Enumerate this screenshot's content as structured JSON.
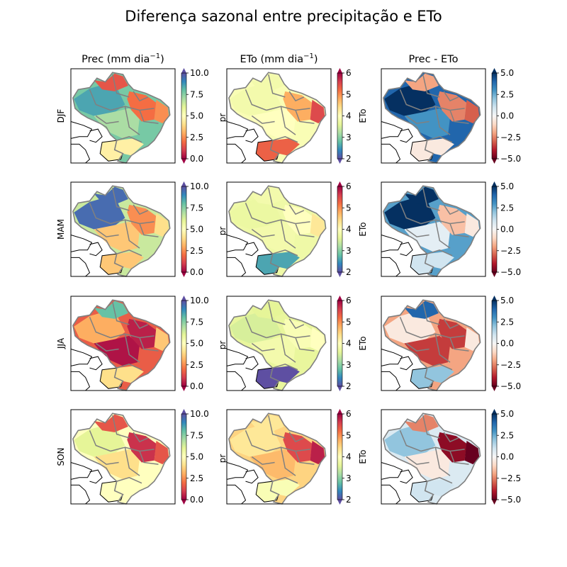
{
  "title": "Diferença sazonal entre precipitação e ETo",
  "columns": [
    {
      "id": "prec",
      "label": "Prec (mm dia",
      "label_sup": "−1",
      "label_close": ")",
      "cbar_ticks": [
        "10.0",
        "7.5",
        "5.0",
        "2.5",
        "0.0"
      ],
      "cbar_range": [
        0,
        10
      ],
      "cbar_side_label": "",
      "row_side_label": "",
      "cmap": "spectral",
      "reversed": false
    },
    {
      "id": "eto",
      "label": "ETo (mm dia",
      "label_sup": "−1",
      "label_close": ")",
      "cbar_ticks": [
        "6",
        "5",
        "4",
        "3",
        "2"
      ],
      "cbar_range": [
        2,
        6
      ],
      "cbar_side_label": "ETo",
      "row_side_label": "pr",
      "cmap": "spectral",
      "reversed": true
    },
    {
      "id": "diff",
      "label": "Prec - ETo",
      "label_sup": "",
      "label_close": "",
      "cbar_ticks": [
        "5.0",
        "2.5",
        "0.0",
        "−2.5",
        "−5.0"
      ],
      "cbar_range": [
        -5,
        5
      ],
      "cbar_side_label": "",
      "row_side_label": "",
      "cmap": "rdbu",
      "reversed": false
    }
  ],
  "rows": [
    "DJF",
    "MAM",
    "JJA",
    "SON"
  ],
  "colors": {
    "country_border": "#000000",
    "state_border": "#808080",
    "spectral": [
      "#9e0142",
      "#d53e4f",
      "#f46d43",
      "#fdae61",
      "#fee08b",
      "#ffffbf",
      "#e6f598",
      "#abdda4",
      "#66c2a5",
      "#3288bd",
      "#5e4fa2"
    ],
    "rdbu": [
      "#67001f",
      "#b2182b",
      "#d6604d",
      "#f4a582",
      "#fddbc7",
      "#f7f7f7",
      "#d1e5f0",
      "#92c5de",
      "#4393c3",
      "#2166ac",
      "#053061"
    ]
  },
  "map_fields": {
    "prec": {
      "DJF": {
        "north": 8.5,
        "northeast_coast": 2.5,
        "central": 7.0,
        "northeast": 2.0,
        "south": 4.5,
        "far_north": 1.5
      },
      "MAM": {
        "north": 9.5,
        "northeast_coast": 4.0,
        "central": 3.5,
        "northeast": 2.5,
        "south": 3.5,
        "far_north": 9.5
      },
      "JJA": {
        "north": 3.0,
        "northeast_coast": 3.5,
        "central": 0.3,
        "northeast": 0.5,
        "south": 4.0,
        "far_north": 8.0
      },
      "SON": {
        "north": 6.0,
        "northeast_coast": 1.5,
        "central": 4.0,
        "northeast": 0.8,
        "south": 5.0,
        "far_north": 1.5
      }
    },
    "eto": {
      "DJF": {
        "north": 3.8,
        "northeast_coast": 5.5,
        "central": 4.0,
        "northeast": 4.8,
        "south": 5.3,
        "far_north": 3.8
      },
      "MAM": {
        "north": 3.7,
        "northeast_coast": 4.3,
        "central": 3.8,
        "northeast": 4.0,
        "south": 2.6,
        "far_north": 3.8
      },
      "JJA": {
        "north": 3.5,
        "northeast_coast": 4.0,
        "central": 3.8,
        "northeast": 3.9,
        "south": 2.0,
        "far_north": 3.6
      },
      "SON": {
        "north": 4.3,
        "northeast_coast": 5.8,
        "central": 4.7,
        "northeast": 5.5,
        "south": 3.9,
        "far_north": 4.3
      }
    },
    "diff": {
      "DJF": {
        "north": 5.0,
        "northeast_coast": -3.0,
        "central": 3.0,
        "northeast": -2.5,
        "south": -0.5,
        "far_north": -2.0
      },
      "MAM": {
        "north": 5.0,
        "northeast_coast": -0.5,
        "central": 0.5,
        "northeast": -1.5,
        "south": 1.0,
        "far_north": 5.0
      },
      "JJA": {
        "north": -0.5,
        "northeast_coast": -0.5,
        "central": -3.5,
        "northeast": -3.5,
        "south": 2.0,
        "far_north": 4.0
      },
      "SON": {
        "north": 2.0,
        "northeast_coast": -5.0,
        "central": -0.5,
        "northeast": -4.5,
        "south": 1.0,
        "far_north": -2.5
      }
    }
  }
}
